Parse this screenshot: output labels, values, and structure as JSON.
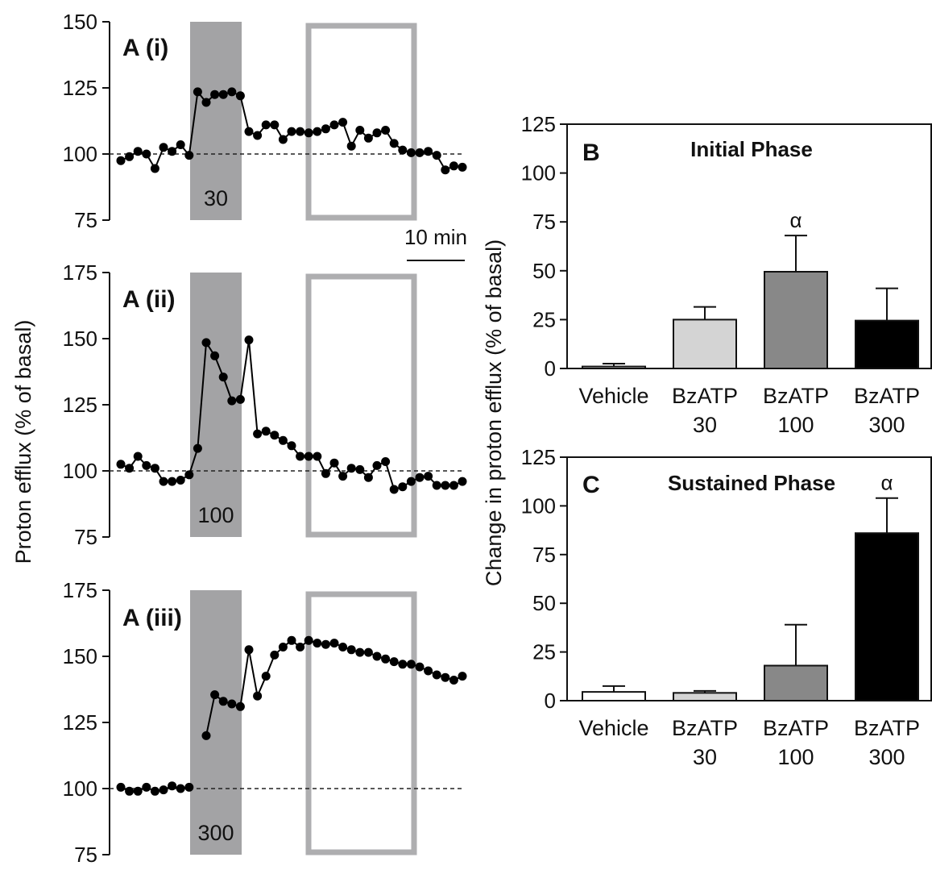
{
  "chart_data": [
    {
      "panel": "A (i)",
      "type": "line",
      "ylim": [
        75,
        150
      ],
      "yticks": [
        75,
        100,
        125,
        150
      ],
      "baseline": 100,
      "treatment_label": "30",
      "y": [
        97.5,
        99,
        101,
        100,
        94.5,
        102.5,
        101,
        103.5,
        99.5,
        123.5,
        119.5,
        122.5,
        122.5,
        123.5,
        122,
        108.5,
        107,
        111,
        111,
        105.5,
        108.5,
        108.5,
        108,
        108.5,
        109.5,
        111,
        112,
        103,
        109,
        106,
        108,
        109,
        104,
        101.5,
        100.5,
        100.5,
        101,
        99.5,
        94,
        95.5,
        95
      ]
    },
    {
      "panel": "A (ii)",
      "type": "line",
      "ylim": [
        75,
        175
      ],
      "yticks": [
        75,
        100,
        125,
        150,
        175
      ],
      "baseline": 100,
      "treatment_label": "100",
      "y": [
        102.5,
        101,
        105.5,
        102,
        101,
        96,
        96,
        96.5,
        98.5,
        108.5,
        148.5,
        143.5,
        135.5,
        126.5,
        127,
        149.5,
        114,
        115,
        113.5,
        111.5,
        109.5,
        105.5,
        105.5,
        105.5,
        99,
        103,
        98,
        101,
        100.5,
        97.5,
        102,
        103.5,
        93,
        94,
        96,
        97.5,
        98,
        94.5,
        94.5,
        94.5,
        96
      ]
    },
    {
      "panel": "A (iii)",
      "type": "line",
      "ylim": [
        75,
        175
      ],
      "yticks": [
        75,
        100,
        125,
        150,
        175
      ],
      "baseline": 100,
      "treatment_label": "300",
      "y": [
        100.5,
        99,
        99,
        100.5,
        99,
        99.5,
        101,
        100,
        100.5,
        null,
        120,
        135.5,
        133,
        132,
        131,
        152.5,
        135,
        142.5,
        150.5,
        153.5,
        156,
        153.5,
        156,
        155,
        154.5,
        155,
        153.5,
        152.5,
        151.5,
        151.5,
        150,
        149,
        148,
        147,
        147,
        146,
        144.5,
        143,
        142,
        141,
        142.5
      ]
    },
    {
      "panel": "B",
      "type": "bar",
      "title": "Initial Phase",
      "categories": [
        [
          "Vehicle"
        ],
        [
          "BzATP",
          "30"
        ],
        [
          "BzATP",
          "100"
        ],
        [
          "BzATP",
          "300"
        ]
      ],
      "values": [
        1,
        25,
        49.5,
        24.5
      ],
      "errors": [
        1.5,
        6.5,
        18.5,
        16.5
      ],
      "colors": [
        "#ffffff",
        "#d4d4d4",
        "#888888",
        "#000000"
      ],
      "annotations": [
        "",
        "",
        "α",
        ""
      ],
      "ylim": [
        0,
        125
      ],
      "yticks": [
        0,
        25,
        50,
        75,
        100,
        125
      ]
    },
    {
      "panel": "C",
      "type": "bar",
      "title": "Sustained Phase",
      "categories": [
        [
          "Vehicle"
        ],
        [
          "BzATP",
          "30"
        ],
        [
          "BzATP",
          "100"
        ],
        [
          "BzATP",
          "300"
        ]
      ],
      "values": [
        4.5,
        4,
        18,
        86
      ],
      "errors": [
        3,
        1,
        21,
        18
      ],
      "colors": [
        "#ffffff",
        "#d4d4d4",
        "#888888",
        "#000000"
      ],
      "annotations": [
        "",
        "",
        "",
        "α"
      ],
      "ylim": [
        0,
        125
      ],
      "yticks": [
        0,
        25,
        50,
        75,
        100,
        125
      ]
    }
  ],
  "labels": {
    "left_ylabel": "Proton efflux (% of basal)",
    "right_ylabel": "Change in proton efflux (% of basal)",
    "scale_bar": "10 min"
  },
  "colors": {
    "treatment_shade": "#a3a3a5",
    "window_outline": "#aeaeb0",
    "points": "#000000"
  }
}
